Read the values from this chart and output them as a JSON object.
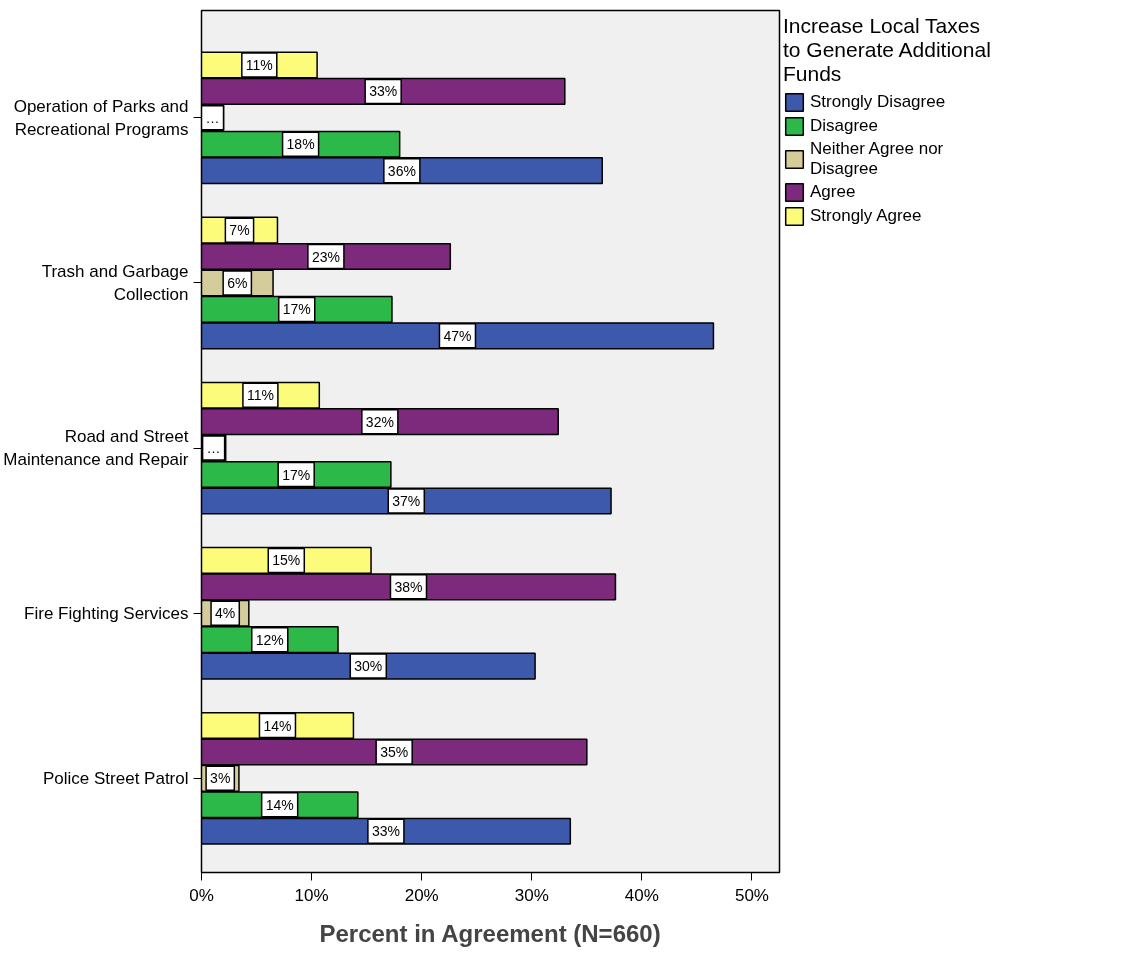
{
  "chart_data": {
    "type": "bar",
    "orientation": "horizontal",
    "xlabel": "Percent in Agreement (N=660)",
    "legend_title": "Increase Local Taxes to Generate Additional Funds",
    "legend": "top right",
    "grid": false,
    "categories": [
      "Operation of Parks and Recreational Programs",
      "Trash and Garbage Collection",
      "Road and Street Maintenance and Repair",
      "Fire Fighting Services",
      "Police Street Patrol"
    ],
    "xlim": [
      0,
      52.5
    ],
    "xticks": [
      {
        "value": 0,
        "label": "0%"
      },
      {
        "value": 10,
        "label": "10%"
      },
      {
        "value": 20,
        "label": "20%"
      },
      {
        "value": 30,
        "label": "30%"
      },
      {
        "value": 40,
        "label": "40%"
      },
      {
        "value": 50,
        "label": "50%"
      }
    ],
    "series": [
      {
        "name": "Strongly Disagree",
        "color": "#3d59ab",
        "values": [
          36.4,
          46.5,
          37.2,
          30.3,
          33.5
        ],
        "value_labels": [
          "36%",
          "47%",
          "37%",
          "30%",
          "33%"
        ]
      },
      {
        "name": "Disagree",
        "color": "#2db84a",
        "values": [
          18.0,
          17.3,
          17.2,
          12.4,
          14.2
        ],
        "value_labels": [
          "18%",
          "17%",
          "17%",
          "12%",
          "14%"
        ]
      },
      {
        "name": "Neither Agree nor Disagree",
        "color": "#d4cc9a",
        "values": [
          2.0,
          6.5,
          2.2,
          4.3,
          3.4
        ],
        "value_labels": [
          "…",
          "6%",
          "…",
          "4%",
          "3%"
        ]
      },
      {
        "name": "Agree",
        "color": "#7d2a7d",
        "values": [
          33.0,
          22.6,
          32.4,
          37.6,
          35.0
        ],
        "value_labels": [
          "33%",
          "23%",
          "32%",
          "38%",
          "35%"
        ]
      },
      {
        "name": "Strongly Agree",
        "color": "#fdfc7a",
        "values": [
          10.5,
          6.9,
          10.7,
          15.4,
          13.8
        ],
        "value_labels": [
          "11%",
          "7%",
          "11%",
          "15%",
          "14%"
        ]
      }
    ]
  }
}
